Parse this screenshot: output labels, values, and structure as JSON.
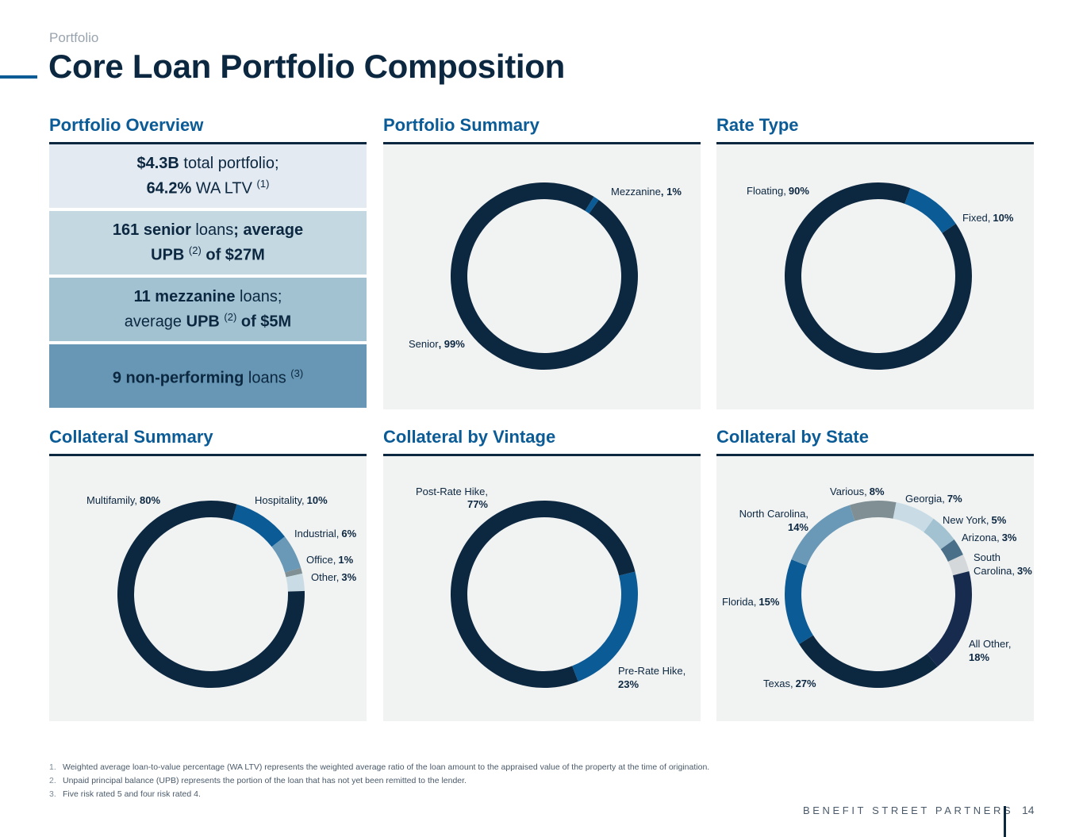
{
  "header": {
    "kicker": "Portfolio",
    "title": "Core Loan Portfolio Composition"
  },
  "sections": {
    "overview": "Portfolio Overview",
    "summary": "Portfolio Summary",
    "rate": "Rate Type",
    "collateral": "Collateral Summary",
    "vintage": "Collateral by Vintage",
    "state": "Collateral by State"
  },
  "overview": {
    "box1_a_bold": "$4.3B",
    "box1_a": " total portfolio;",
    "box1_b_bold": "64.2%",
    "box1_b": " WA LTV ",
    "box1_sup": "(1)",
    "box2_a_bold": "161 senior",
    "box2_a": " loans",
    "box2_a2": "; average",
    "box2_b_bold": "UPB ",
    "box2_b_sup": "(2)",
    "box2_b_bold2": " of $27M",
    "box3_a_bold": "11 mezzanine",
    "box3_a": " loans;",
    "box3_b": "average ",
    "box3_b_bold": "UPB ",
    "box3_b_sup": "(2)",
    "box3_b_bold2": " of $5M",
    "box4_bold": "9 non-performing",
    "box4": " loans ",
    "box4_sup": "(3)"
  },
  "colors": {
    "navy": "#0c2740",
    "blue": "#0b5b96",
    "steel": "#6a99b8",
    "slate": "#4a6f88",
    "light": "#c9dce6",
    "gray": "#7f8f94",
    "box1": "#e3eaf1",
    "box2": "#c4d8e2",
    "box3": "#a2c2d1",
    "box4": "#6797b4"
  },
  "chart_data": [
    {
      "type": "pie",
      "id": "portfolio-summary",
      "slices": [
        {
          "label": "Mezzanine",
          "value": 1,
          "color": "#0b5b96"
        },
        {
          "label": "Senior",
          "value": 99,
          "color": "#0c2740"
        }
      ]
    },
    {
      "type": "pie",
      "id": "rate-type",
      "slices": [
        {
          "label": "Fixed",
          "value": 10,
          "color": "#0b5b96"
        },
        {
          "label": "Floating",
          "value": 90,
          "color": "#0c2740"
        }
      ]
    },
    {
      "type": "pie",
      "id": "collateral-summary",
      "slices": [
        {
          "label": "Hospitality",
          "value": 10,
          "color": "#0b5b96"
        },
        {
          "label": "Industrial",
          "value": 6,
          "color": "#6a99b8"
        },
        {
          "label": "Office",
          "value": 1,
          "color": "#7f8f94"
        },
        {
          "label": "Other",
          "value": 3,
          "color": "#c9dce6"
        },
        {
          "label": "Multifamily",
          "value": 80,
          "color": "#0c2740"
        }
      ]
    },
    {
      "type": "pie",
      "id": "collateral-vintage",
      "slices": [
        {
          "label": "Pre-Rate Hike",
          "value": 23,
          "color": "#0b5b96"
        },
        {
          "label": "Post-Rate Hike",
          "value": 77,
          "color": "#0c2740"
        }
      ]
    },
    {
      "type": "pie",
      "id": "collateral-state",
      "slices": [
        {
          "label": "Georgia",
          "value": 7,
          "color": "#c9dce6"
        },
        {
          "label": "New York",
          "value": 5,
          "color": "#a2c2d1"
        },
        {
          "label": "Arizona",
          "value": 3,
          "color": "#4a6f88"
        },
        {
          "label": "South Carolina",
          "value": 3,
          "color": "#d4d8da"
        },
        {
          "label": "All Other",
          "value": 18,
          "color": "#172b4f"
        },
        {
          "label": "Texas",
          "value": 27,
          "color": "#0c2740"
        },
        {
          "label": "Florida",
          "value": 15,
          "color": "#0b5b96"
        },
        {
          "label": "North Carolina",
          "value": 14,
          "color": "#6a99b8"
        },
        {
          "label": "Various",
          "value": 8,
          "color": "#7f8f94"
        }
      ]
    }
  ],
  "labels": {
    "summary": {
      "mezz": "Mezzanine",
      "mezz_pct": ", 1%",
      "senior": "Senior",
      "senior_pct": ", 99%"
    },
    "rate": {
      "floating": "Floating,",
      "floating_pct": "90%",
      "fixed": "Fixed,",
      "fixed_pct": "10%"
    },
    "collateral": {
      "multi": "Multifamily,",
      "multi_pct": "80%",
      "hosp": "Hospitality,",
      "hosp_pct": "10%",
      "ind": "Industrial,",
      "ind_pct": "6%",
      "office": "Office,",
      "office_pct": "1%",
      "other": "Other,",
      "other_pct": "3%"
    },
    "vintage": {
      "post": "Post-Rate Hike,",
      "post_pct": "77%",
      "pre": "Pre-Rate Hike,",
      "pre_pct": "23%"
    },
    "state": {
      "various": "Various,",
      "various_pct": "8%",
      "georgia": "Georgia,",
      "georgia_pct": "7%",
      "ny": "New York,",
      "ny_pct": "5%",
      "az": "Arizona,",
      "az_pct": "3%",
      "sc1": "South",
      "sc2": "Carolina,",
      "sc_pct": "3%",
      "other1": "All Other,",
      "other_pct": "18%",
      "tx": "Texas,",
      "tx_pct": "27%",
      "fl": "Florida,",
      "fl_pct": "15%",
      "nc1": "North Carolina,",
      "nc_pct": "14%"
    }
  },
  "footnotes": [
    {
      "n": "1.",
      "text": "Weighted average loan-to-value percentage (WA LTV) represents the weighted average ratio of the loan amount to the appraised value of the property at the time of origination."
    },
    {
      "n": "2.",
      "text": "Unpaid principal balance (UPB) represents the portion of the loan that has not yet been remitted to the lender."
    },
    {
      "n": "3.",
      "text": "Five risk rated 5 and four risk rated 4."
    }
  ],
  "footer": {
    "brand": "BENEFIT STREET PARTNERS",
    "page": "14"
  }
}
